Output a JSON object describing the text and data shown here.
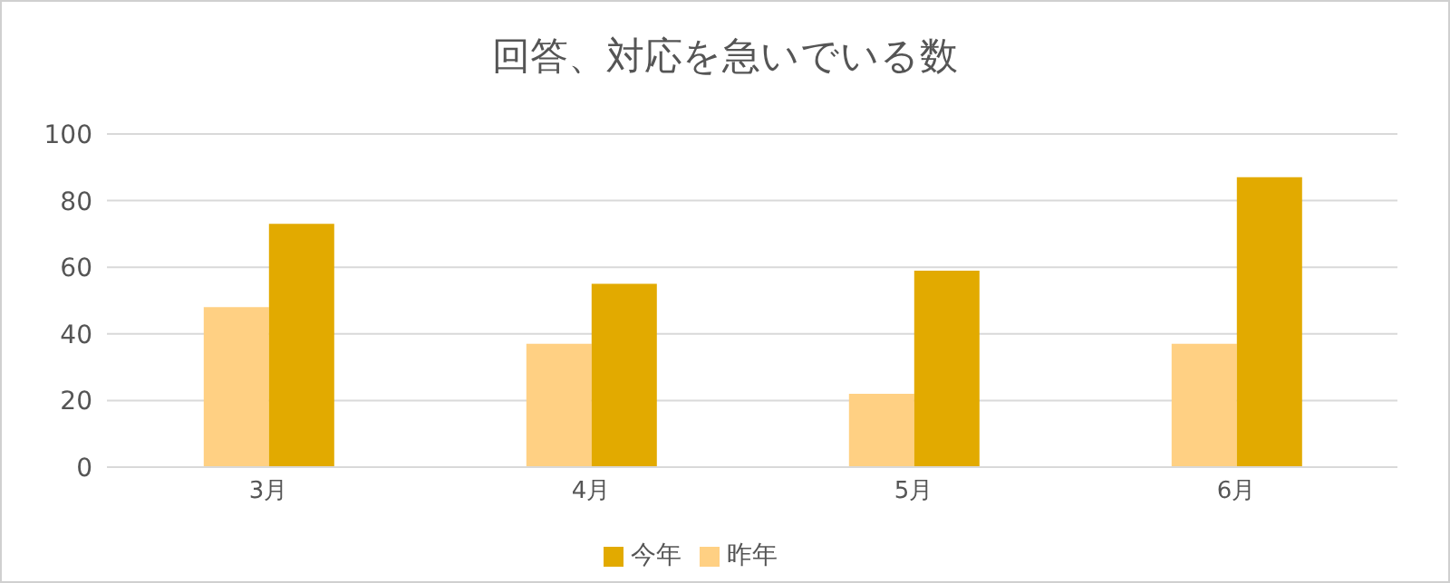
{
  "chart_data": {
    "type": "bar",
    "title": "回答、対応を急いでいる数",
    "categories": [
      "3月",
      "4月",
      "5月",
      "6月"
    ],
    "series": [
      {
        "name": "昨年",
        "color": "#ffd083",
        "values": [
          48,
          37,
          22,
          37
        ]
      },
      {
        "name": "今年",
        "color": "#e2aa00",
        "values": [
          73,
          55,
          59,
          87
        ]
      }
    ],
    "ylim": [
      0,
      100
    ],
    "yticks": [
      0,
      20,
      40,
      60,
      80,
      100
    ],
    "grid": "y",
    "legend": "bottom"
  }
}
